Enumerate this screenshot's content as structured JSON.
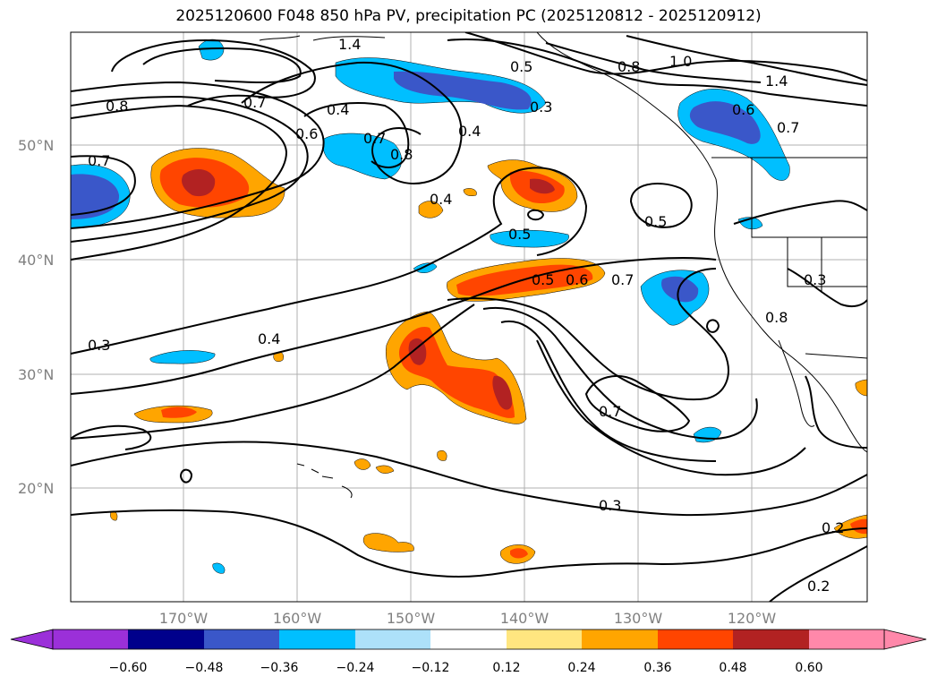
{
  "title": "2025120600 F048 850 hPa PV, precipitation PC (2025120812 - 2025120912)",
  "latitude_labels": [
    "50°N",
    "40°N",
    "30°N",
    "20°N"
  ],
  "longitude_labels": [
    "170°W",
    "160°W",
    "150°W",
    "140°W",
    "130°W",
    "120°W"
  ],
  "contour_labels": [
    "1.4",
    "0.8",
    "1.0",
    "1.4",
    "0.8",
    "0.7",
    "0.5",
    "0.3",
    "0.4",
    "0.6",
    "0.7",
    "0.8",
    "0.4",
    "0.6",
    "0.7",
    "0.7",
    "0.4",
    "0.5",
    "0.5",
    "0.5",
    "0.6",
    "0.7",
    "0.3",
    "0.3",
    "0.4",
    "0.7",
    "0.3",
    "0.2",
    "0.2",
    "0.8"
  ],
  "colorbar": {
    "ticks": [
      "−0.60",
      "−0.48",
      "−0.36",
      "−0.24",
      "−0.12",
      "0.12",
      "0.24",
      "0.36",
      "0.48",
      "0.60"
    ],
    "colors": [
      "#9b30d9",
      "#00008b",
      "#3a57c9",
      "#00bfff",
      "#ade1f9",
      "#ffffff",
      "#ffe680",
      "#ffa500",
      "#ff4500",
      "#b22222",
      "#ff88aa"
    ]
  },
  "palette": {
    "neg_strong": "#3a57c9",
    "neg_mid": "#00bfff",
    "pos_low": "#ffa500",
    "pos_mid": "#ff4500",
    "pos_high": "#b22222"
  }
}
